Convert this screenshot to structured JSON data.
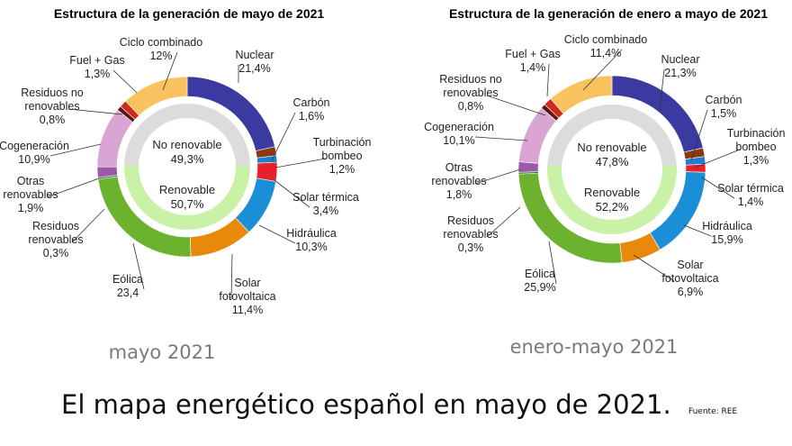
{
  "colors": {
    "nuclear": "#3b3aa0",
    "carbon": "#8b3a0f",
    "turbinacion": "#1f7fd1",
    "solar_termica": "#e8202a",
    "hidraulica": "#1a8fd6",
    "solar_fv": "#e9890c",
    "eolica": "#6cb22e",
    "residuos_renov": "#2f6b2f",
    "otras_renov": "#9a5aa8",
    "cogeneracion": "#d9a6d4",
    "residuos_no_renov": "#5a1616",
    "fuel_gas": "#d02a1f",
    "ciclo": "#f8c35e",
    "inner_no_renovable": "#dcdcdc",
    "inner_renovable": "#c9f2a6"
  },
  "caption": {
    "text": "El mapa energético español en mayo de 2021.",
    "source": "Fuente: REE"
  },
  "chart_data": [
    {
      "type": "pie",
      "title": "Estructura de la generación de mayo de 2021",
      "period_label": "mayo 2021",
      "inner": [
        {
          "name": "No renovable",
          "value_label": "49,3%",
          "value": 49.3
        },
        {
          "name": "Renovable",
          "value_label": "50,7%",
          "value": 50.7
        }
      ],
      "slices": [
        {
          "key": "nuclear",
          "name": "Nuclear",
          "value_label": "21,4%",
          "value": 21.4
        },
        {
          "key": "carbon",
          "name": "Carbón",
          "value_label": "1,6%",
          "value": 1.6
        },
        {
          "key": "turbinacion",
          "name": "Turbinación bombeo",
          "value_label": "1,2%",
          "value": 1.2
        },
        {
          "key": "solar_termica",
          "name": "Solar térmica",
          "value_label": "3,4%",
          "value": 3.4
        },
        {
          "key": "hidraulica",
          "name": "Hidráulica",
          "value_label": "10,3%",
          "value": 10.3
        },
        {
          "key": "solar_fv",
          "name": "Solar fotovoltaica",
          "value_label": "11,4%",
          "value": 11.4
        },
        {
          "key": "eolica",
          "name": "Eólica",
          "value_label": "23,4",
          "value": 23.4
        },
        {
          "key": "residuos_renov",
          "name": "Residuos renovables",
          "value_label": "0,3%",
          "value": 0.3
        },
        {
          "key": "otras_renov",
          "name": "Otras renovables",
          "value_label": "1,9%",
          "value": 1.9
        },
        {
          "key": "cogeneracion",
          "name": "Cogeneración",
          "value_label": "10,9%",
          "value": 10.9
        },
        {
          "key": "residuos_no_renov",
          "name": "Residuos no renovables",
          "value_label": "0,8%",
          "value": 0.8
        },
        {
          "key": "fuel_gas",
          "name": "Fuel + Gas",
          "value_label": "1,3%",
          "value": 1.3
        },
        {
          "key": "ciclo",
          "name": "Ciclo combinado",
          "value_label": "12%",
          "value": 12
        }
      ]
    },
    {
      "type": "pie",
      "title": "Estructura de la generación de enero a mayo de 2021",
      "period_label": "enero-mayo 2021",
      "inner": [
        {
          "name": "No renovable",
          "value_label": "47,8%",
          "value": 47.8
        },
        {
          "name": "Renovable",
          "value_label": "52,2%",
          "value": 52.2
        }
      ],
      "slices": [
        {
          "key": "nuclear",
          "name": "Nuclear",
          "value_label": "21,3%",
          "value": 21.3
        },
        {
          "key": "carbon",
          "name": "Carbón",
          "value_label": "1,5%",
          "value": 1.5
        },
        {
          "key": "turbinacion",
          "name": "Turbinación bombeo",
          "value_label": "1,3%",
          "value": 1.3
        },
        {
          "key": "solar_termica",
          "name": "Solar térmica",
          "value_label": "1,4%",
          "value": 1.4
        },
        {
          "key": "hidraulica",
          "name": "Hidráulica",
          "value_label": "15,9%",
          "value": 15.9
        },
        {
          "key": "solar_fv",
          "name": "Solar fotovoltaica",
          "value_label": "6,9%",
          "value": 6.9
        },
        {
          "key": "eolica",
          "name": "Eólica",
          "value_label": "25,9%",
          "value": 25.9
        },
        {
          "key": "residuos_renov",
          "name": "Residuos renovables",
          "value_label": "0,3%",
          "value": 0.3
        },
        {
          "key": "otras_renov",
          "name": "Otras renovables",
          "value_label": "1,8%",
          "value": 1.8
        },
        {
          "key": "cogeneracion",
          "name": "Cogeneración",
          "value_label": "10,1%",
          "value": 10.1
        },
        {
          "key": "residuos_no_renov",
          "name": "Residuos no renovables",
          "value_label": "0,8%",
          "value": 0.8
        },
        {
          "key": "fuel_gas",
          "name": "Fuel + Gas",
          "value_label": "1,4%",
          "value": 1.4
        },
        {
          "key": "ciclo",
          "name": "Ciclo combinado",
          "value_label": "11,4%",
          "value": 11.4
        }
      ]
    }
  ]
}
